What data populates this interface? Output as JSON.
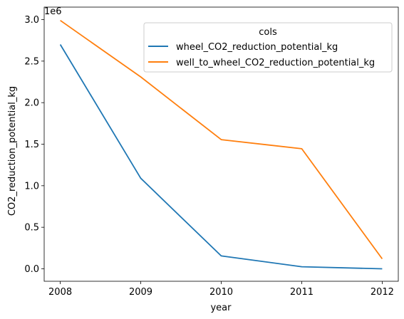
{
  "chart_data": {
    "type": "line",
    "x": [
      2008,
      2009,
      2010,
      2011,
      2012
    ],
    "series": [
      {
        "name": "wheel_CO2_reduction_potential_kg",
        "color": "#1f77b4",
        "values": [
          2700000,
          1090000,
          155000,
          25000,
          0
        ]
      },
      {
        "name": "well_to_wheel_CO2_reduction_potential_kg",
        "color": "#ff7f0e",
        "values": [
          2990000,
          2310000,
          1555000,
          1445000,
          120000
        ]
      }
    ],
    "xlabel": "year",
    "ylabel": "CO2_reduction_potential_kg",
    "y_offset_label": "1e6",
    "x_ticks": [
      "2008",
      "2009",
      "2010",
      "2011",
      "2012"
    ],
    "y_ticks": [
      0,
      500000,
      1000000,
      1500000,
      2000000,
      2500000,
      3000000
    ],
    "y_tick_labels": [
      "0.0",
      "0.5",
      "1.0",
      "1.5",
      "2.0",
      "2.5",
      "3.0"
    ],
    "xlim": [
      2007.8,
      2012.2
    ],
    "ylim": [
      -150000,
      3150000
    ],
    "legend": {
      "title": "cols",
      "placement": "top-right"
    },
    "grid": false
  }
}
